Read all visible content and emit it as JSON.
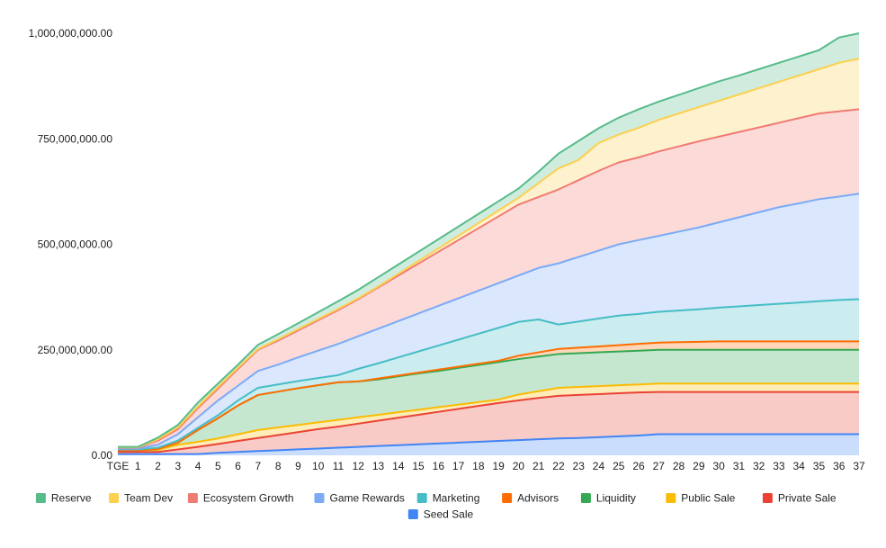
{
  "chart_data": {
    "type": "area",
    "stacked": true,
    "title": "",
    "xlabel": "",
    "ylabel": "",
    "ylim": [
      0,
      1000000000
    ],
    "y_ticks": [
      "0.00",
      "250,000,000.00",
      "500,000,000.00",
      "750,000,000.00",
      "1,000,000,000.00"
    ],
    "x": [
      "TGE",
      "1",
      "2",
      "3",
      "4",
      "5",
      "6",
      "7",
      "8",
      "9",
      "10",
      "11",
      "12",
      "13",
      "14",
      "15",
      "16",
      "17",
      "18",
      "19",
      "20",
      "21",
      "22",
      "23",
      "24",
      "25",
      "26",
      "27",
      "28",
      "29",
      "30",
      "31",
      "32",
      "33",
      "34",
      "35",
      "36",
      "37"
    ],
    "grid": false,
    "legend_position": "bottom",
    "series": [
      {
        "name": "Seed Sale",
        "color": "#4285f4",
        "cumulative": [
          3000000,
          3000000,
          3000000,
          3000000,
          3000000,
          6000000,
          8000000,
          10000000,
          12000000,
          14000000,
          16000000,
          18000000,
          20000000,
          22000000,
          24000000,
          26000000,
          28000000,
          30000000,
          32000000,
          34000000,
          36000000,
          38000000,
          40000000,
          41000000,
          43000000,
          45000000,
          47000000,
          50000000,
          50000000,
          50000000,
          50000000,
          50000000,
          50000000,
          50000000,
          50000000,
          50000000,
          50000000,
          50000000
        ]
      },
      {
        "name": "Private Sale",
        "color": "#ea4335",
        "cumulative": [
          8000000,
          8000000,
          8000000,
          14000000,
          20000000,
          27000000,
          34000000,
          41000000,
          48000000,
          55000000,
          62000000,
          68000000,
          75000000,
          82000000,
          89000000,
          96000000,
          103000000,
          110000000,
          117000000,
          124000000,
          130000000,
          136000000,
          141000000,
          143000000,
          145000000,
          147000000,
          149000000,
          150000000,
          150000000,
          150000000,
          150000000,
          150000000,
          150000000,
          150000000,
          150000000,
          150000000,
          150000000,
          150000000
        ]
      },
      {
        "name": "Public Sale",
        "color": "#fbbc04",
        "cumulative": [
          12000000,
          12000000,
          13000000,
          25000000,
          32000000,
          40000000,
          50000000,
          60000000,
          66000000,
          72000000,
          78000000,
          84000000,
          90000000,
          96000000,
          102000000,
          108000000,
          114000000,
          120000000,
          126000000,
          132000000,
          144000000,
          152000000,
          160000000,
          162000000,
          164000000,
          166000000,
          168000000,
          170000000,
          170000000,
          170000000,
          170000000,
          170000000,
          170000000,
          170000000,
          170000000,
          170000000,
          170000000,
          170000000
        ]
      },
      {
        "name": "Liquidity",
        "color": "#34a853",
        "cumulative": [
          12000000,
          12000000,
          15000000,
          30000000,
          60000000,
          88000000,
          118000000,
          143000000,
          151000000,
          159000000,
          166000000,
          173000000,
          175000000,
          180000000,
          187000000,
          194000000,
          200000000,
          207000000,
          214000000,
          221000000,
          228000000,
          234000000,
          240000000,
          242000000,
          244000000,
          246000000,
          248000000,
          250000000,
          250000000,
          250000000,
          250000000,
          250000000,
          250000000,
          250000000,
          250000000,
          250000000,
          250000000,
          250000000
        ]
      },
      {
        "name": "Advisors",
        "color": "#ff6d01",
        "cumulative": [
          12000000,
          12000000,
          15000000,
          30000000,
          60000000,
          88000000,
          118000000,
          143000000,
          151000000,
          159000000,
          166000000,
          173000000,
          175000000,
          182000000,
          189000000,
          196000000,
          203000000,
          210000000,
          217000000,
          224000000,
          236000000,
          244000000,
          252000000,
          255000000,
          258000000,
          261000000,
          264000000,
          267000000,
          268000000,
          269000000,
          270000000,
          270000000,
          270000000,
          270000000,
          270000000,
          270000000,
          270000000,
          270000000
        ]
      },
      {
        "name": "Marketing",
        "color": "#46bdc6",
        "cumulative": [
          14000000,
          14000000,
          18000000,
          35000000,
          65000000,
          95000000,
          130000000,
          160000000,
          168000000,
          176000000,
          183000000,
          190000000,
          205000000,
          218000000,
          232000000,
          246000000,
          260000000,
          274000000,
          288000000,
          302000000,
          316000000,
          322000000,
          310000000,
          317000000,
          324000000,
          331000000,
          335000000,
          340000000,
          343000000,
          346000000,
          350000000,
          353000000,
          356000000,
          359000000,
          362000000,
          365000000,
          368000000,
          370000000
        ]
      },
      {
        "name": "Game Rewards",
        "color": "#7baaf7",
        "cumulative": [
          16000000,
          16000000,
          25000000,
          50000000,
          90000000,
          130000000,
          165000000,
          200000000,
          215000000,
          232000000,
          248000000,
          264000000,
          282000000,
          300000000,
          318000000,
          336000000,
          354000000,
          372000000,
          390000000,
          408000000,
          426000000,
          444000000,
          455000000,
          470000000,
          485000000,
          500000000,
          510000000,
          520000000,
          530000000,
          540000000,
          552000000,
          564000000,
          576000000,
          588000000,
          597000000,
          607000000,
          613000000,
          620000000
        ]
      },
      {
        "name": "Ecosystem Growth",
        "color": "#f07b72",
        "cumulative": [
          18000000,
          18000000,
          35000000,
          62000000,
          112000000,
          158000000,
          205000000,
          250000000,
          272000000,
          296000000,
          320000000,
          344000000,
          370000000,
          398000000,
          426000000,
          454000000,
          482000000,
          510000000,
          538000000,
          566000000,
          594000000,
          612000000,
          630000000,
          652000000,
          674000000,
          694000000,
          706000000,
          720000000,
          732000000,
          744000000,
          755000000,
          766000000,
          777000000,
          788000000,
          799000000,
          810000000,
          815000000,
          820000000
        ]
      },
      {
        "name": "Team Dev",
        "color": "#fcd04f",
        "cumulative": [
          19000000,
          19000000,
          38000000,
          66000000,
          116000000,
          162000000,
          208000000,
          252000000,
          275000000,
          299000000,
          323000000,
          347000000,
          372000000,
          400000000,
          430000000,
          460000000,
          490000000,
          520000000,
          550000000,
          580000000,
          610000000,
          645000000,
          680000000,
          700000000,
          740000000,
          760000000,
          776000000,
          795000000,
          810000000,
          825000000,
          840000000,
          855000000,
          870000000,
          885000000,
          900000000,
          915000000,
          930000000,
          940000000
        ]
      },
      {
        "name": "Reserve",
        "color": "#57bb8a",
        "cumulative": [
          20000000,
          20000000,
          42000000,
          72000000,
          125000000,
          170000000,
          215000000,
          262000000,
          287000000,
          313000000,
          339000000,
          365000000,
          392000000,
          422000000,
          452000000,
          482000000,
          512000000,
          542000000,
          572000000,
          602000000,
          632000000,
          672000000,
          715000000,
          745000000,
          775000000,
          800000000,
          820000000,
          838000000,
          854000000,
          870000000,
          886000000,
          900000000,
          915000000,
          930000000,
          945000000,
          960000000,
          990000000,
          1000000000
        ]
      }
    ],
    "legend": [
      [
        "Reserve",
        "Team Dev",
        "Ecosystem Growth",
        "Game Rewards",
        "Marketing",
        "Advisors",
        "Liquidity",
        "Public Sale",
        "Private Sale"
      ],
      [
        "Seed Sale"
      ]
    ]
  }
}
